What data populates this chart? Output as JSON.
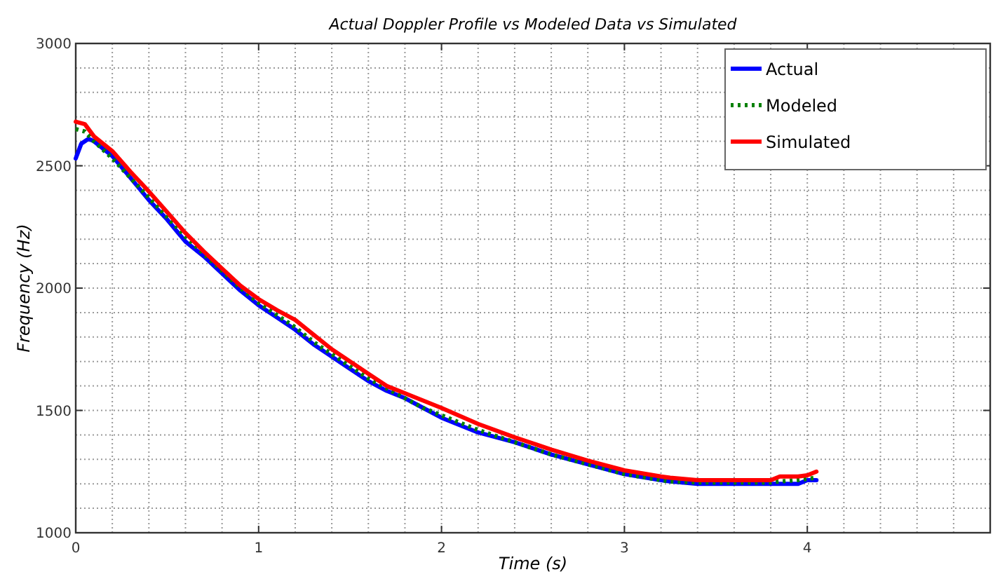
{
  "chart_data": {
    "type": "line",
    "title": "Actual Doppler Profile vs Modeled Data vs Simulated",
    "xlabel": "Time (s)",
    "ylabel": "Frequency (Hz)",
    "xlim": [
      0,
      5
    ],
    "ylim": [
      1000,
      3000
    ],
    "xticks": [
      0,
      {
        "value": 0.2,
        "label": null
      },
      {
        "value": 0.4,
        "label": null
      },
      {
        "value": 0.6,
        "label": null
      },
      {
        "value": 0.8,
        "label": null
      },
      1,
      {
        "value": 1.2,
        "label": null
      },
      {
        "value": 1.4,
        "label": null
      },
      {
        "value": 1.6,
        "label": null
      },
      {
        "value": 1.8,
        "label": null
      },
      2,
      {
        "value": 2.2,
        "label": null
      },
      {
        "value": 2.4,
        "label": null
      },
      {
        "value": 2.6,
        "label": null
      },
      {
        "value": 2.8,
        "label": null
      },
      3,
      {
        "value": 3.2,
        "label": null
      },
      {
        "value": 3.4,
        "label": null
      },
      {
        "value": 3.6,
        "label": null
      },
      {
        "value": 3.8,
        "label": null
      },
      4,
      {
        "value": 4.2,
        "label": null
      },
      {
        "value": 4.4,
        "label": null
      },
      {
        "value": 4.6,
        "label": null
      },
      {
        "value": 4.8,
        "label": null
      }
    ],
    "yticks": [
      1000,
      {
        "value": 1100,
        "label": null
      },
      {
        "value": 1200,
        "label": null
      },
      {
        "value": 1300,
        "label": null
      },
      {
        "value": 1400,
        "label": null
      },
      1500,
      {
        "value": 1600,
        "label": null
      },
      {
        "value": 1700,
        "label": null
      },
      {
        "value": 1800,
        "label": null
      },
      {
        "value": 1900,
        "label": null
      },
      2000,
      {
        "value": 2100,
        "label": null
      },
      {
        "value": 2200,
        "label": null
      },
      {
        "value": 2300,
        "label": null
      },
      {
        "value": 2400,
        "label": null
      },
      2500,
      {
        "value": 2600,
        "label": null
      },
      {
        "value": 2700,
        "label": null
      },
      {
        "value": 2800,
        "label": null
      },
      {
        "value": 2900,
        "label": null
      },
      3000
    ],
    "grid": true,
    "legend": "top right",
    "series": [
      {
        "name": "Actual",
        "color": "#0000ff",
        "line_style": "solid",
        "x": [
          0,
          0.03,
          0.07,
          0.1,
          0.2,
          0.3,
          0.4,
          0.5,
          0.6,
          0.7,
          0.8,
          0.9,
          1.0,
          1.1,
          1.2,
          1.3,
          1.4,
          1.5,
          1.6,
          1.7,
          1.8,
          1.9,
          2.0,
          2.2,
          2.4,
          2.6,
          2.8,
          3.0,
          3.2,
          3.25,
          3.4,
          3.6,
          3.8,
          3.85,
          3.95,
          4.0,
          4.05
        ],
        "values": [
          2530,
          2590,
          2610,
          2600,
          2540,
          2450,
          2360,
          2280,
          2190,
          2130,
          2060,
          1990,
          1930,
          1880,
          1830,
          1770,
          1720,
          1670,
          1620,
          1580,
          1550,
          1510,
          1470,
          1410,
          1370,
          1320,
          1280,
          1240,
          1215,
          1210,
          1200,
          1200,
          1200,
          1200,
          1200,
          1215,
          1215
        ]
      },
      {
        "name": "Modeled",
        "color": "#008000",
        "line_style": "dotted",
        "x": [
          0,
          0.05,
          0.1,
          0.2,
          0.3,
          0.4,
          0.5,
          0.6,
          0.7,
          0.8,
          0.9,
          1.0,
          1.1,
          1.2,
          1.3,
          1.4,
          1.5,
          1.6,
          1.7,
          1.8,
          1.9,
          2.0,
          2.2,
          2.4,
          2.6,
          2.8,
          3.0,
          3.2,
          3.25,
          3.4,
          3.6,
          3.8,
          3.85,
          3.95,
          4.0,
          4.05
        ],
        "values": [
          2650,
          2640,
          2600,
          2530,
          2450,
          2370,
          2290,
          2210,
          2140,
          2070,
          2000,
          1940,
          1890,
          1840,
          1780,
          1730,
          1680,
          1630,
          1590,
          1550,
          1510,
          1480,
          1420,
          1370,
          1320,
          1280,
          1240,
          1215,
          1210,
          1205,
          1205,
          1205,
          1210,
          1215,
          1220,
          1225
        ]
      },
      {
        "name": "Simulated",
        "color": "#ff0000",
        "line_style": "solid",
        "x": [
          0,
          0.05,
          0.1,
          0.2,
          0.3,
          0.4,
          0.5,
          0.6,
          0.7,
          0.8,
          0.9,
          1.0,
          1.1,
          1.2,
          1.3,
          1.4,
          1.5,
          1.6,
          1.7,
          1.8,
          1.9,
          2.0,
          2.2,
          2.4,
          2.6,
          2.8,
          3.0,
          3.2,
          3.25,
          3.4,
          3.6,
          3.8,
          3.85,
          3.95,
          4.0,
          4.05
        ],
        "values": [
          2680,
          2670,
          2620,
          2560,
          2475,
          2395,
          2310,
          2225,
          2150,
          2080,
          2010,
          1955,
          1910,
          1870,
          1810,
          1750,
          1700,
          1650,
          1600,
          1570,
          1540,
          1510,
          1445,
          1390,
          1340,
          1295,
          1255,
          1230,
          1225,
          1215,
          1215,
          1215,
          1230,
          1230,
          1235,
          1250
        ]
      }
    ]
  }
}
